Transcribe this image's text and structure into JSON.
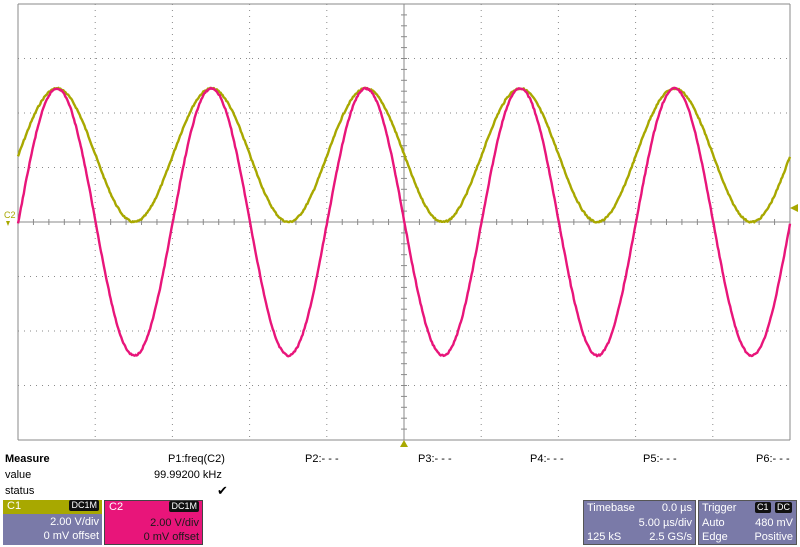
{
  "scope": {
    "channel_marker_left": "C2",
    "traces": [
      {
        "name": "C1",
        "color": "#a8a800",
        "cycles": 5,
        "amplitude_v": 2.45,
        "offset_v": 2.45
      },
      {
        "name": "C2",
        "color": "#e8157a",
        "cycles": 5,
        "amplitude_v": 4.9,
        "offset_v": 0
      }
    ],
    "grid": {
      "h_divs": 10,
      "v_divs": 8,
      "volts_per_div": 2.0
    },
    "colors": {
      "grid": "#8a8a8a",
      "background": "#ffffff",
      "marker": "#a8a800"
    }
  },
  "measure": {
    "title": "Measure",
    "row_labels": [
      "value",
      "status"
    ],
    "params": [
      {
        "label": "P1:freq(C2)",
        "value": "99.99200 kHz",
        "status": "✔"
      },
      {
        "label": "P2:- - -"
      },
      {
        "label": "P3:- - -"
      },
      {
        "label": "P4:- - -"
      },
      {
        "label": "P5:- - -"
      },
      {
        "label": "P6:- - -"
      }
    ]
  },
  "channels": [
    {
      "name": "C1",
      "coupling": "DC1M",
      "vdiv": "2.00 V/div",
      "offset": "0 mV offset",
      "color": "#a8a800"
    },
    {
      "name": "C2",
      "coupling": "DC1M",
      "vdiv": "2.00 V/div",
      "offset": "0 mV offset",
      "color": "#e8157a"
    }
  ],
  "timebase": {
    "title": "Timebase",
    "delay": "0.0 µs",
    "tdiv": "5.00 µs/div",
    "samples": "125 kS",
    "rate": "2.5 GS/s"
  },
  "trigger": {
    "title": "Trigger",
    "source": "C1",
    "coupling": "DC",
    "mode": "Auto",
    "level": "480 mV",
    "type": "Edge",
    "slope": "Positive"
  }
}
